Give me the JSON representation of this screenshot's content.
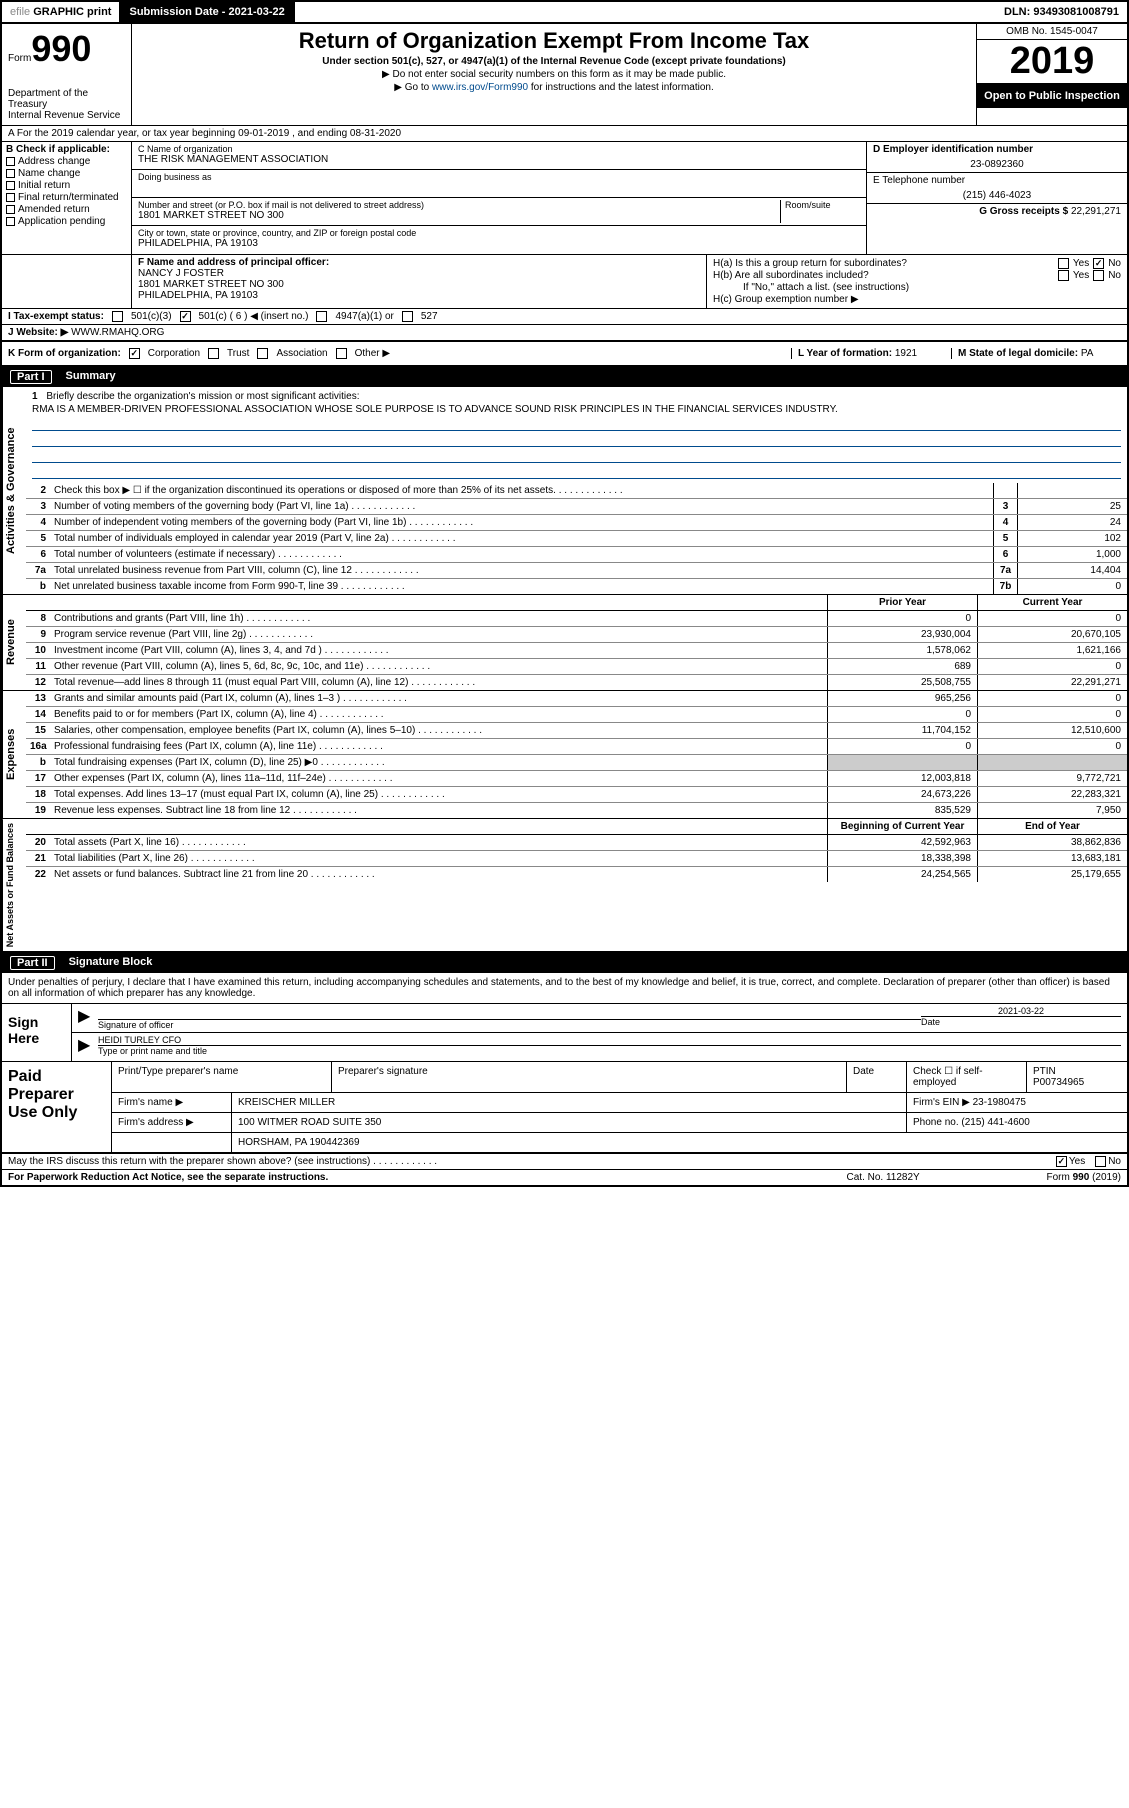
{
  "topbar": {
    "efile_prefix": "efile",
    "efile_suffix": "GRAPHIC print",
    "submission_label": "Submission Date - 2021-03-22",
    "dln": "DLN: 93493081008791"
  },
  "header": {
    "form_label": "Form",
    "form_number": "990",
    "dept": "Department of the Treasury\nInternal Revenue Service",
    "title": "Return of Organization Exempt From Income Tax",
    "subtitle": "Under section 501(c), 527, or 4947(a)(1) of the Internal Revenue Code (except private foundations)",
    "instr1": "▶ Do not enter social security numbers on this form as it may be made public.",
    "instr2_pre": "▶ Go to ",
    "instr2_link": "www.irs.gov/Form990",
    "instr2_post": " for instructions and the latest information.",
    "omb": "OMB No. 1545-0047",
    "year": "2019",
    "open_public": "Open to Public Inspection"
  },
  "row_a": "A For the 2019 calendar year, or tax year beginning 09-01-2019   , and ending 08-31-2020",
  "col_b": {
    "label": "B Check if applicable:",
    "items": [
      "Address change",
      "Name change",
      "Initial return",
      "Final return/terminated",
      "Amended return",
      "Application pending"
    ]
  },
  "col_c": {
    "name_label": "C Name of organization",
    "name": "THE RISK MANAGEMENT ASSOCIATION",
    "dba_label": "Doing business as",
    "dba": "",
    "street_label": "Number and street (or P.O. box if mail is not delivered to street address)",
    "room_label": "Room/suite",
    "street": "1801 MARKET STREET NO 300",
    "city_label": "City or town, state or province, country, and ZIP or foreign postal code",
    "city": "PHILADELPHIA, PA  19103"
  },
  "col_d": {
    "label": "D Employer identification number",
    "val": "23-0892360"
  },
  "col_e": {
    "label": "E Telephone number",
    "val": "(215) 446-4023"
  },
  "col_g": {
    "label": "G Gross receipts $",
    "val": "22,291,271"
  },
  "col_f": {
    "label": "F  Name and address of principal officer:",
    "name": "NANCY J FOSTER",
    "addr1": "1801 MARKET STREET NO 300",
    "addr2": "PHILADELPHIA, PA  19103"
  },
  "col_h": {
    "ha": "H(a)  Is this a group return for subordinates?",
    "hb": "H(b)  Are all subordinates included?",
    "hb_note": "If \"No,\" attach a list. (see instructions)",
    "hc": "H(c)  Group exemption number ▶"
  },
  "row_i": {
    "label": "I   Tax-exempt status:",
    "opts": [
      "501(c)(3)",
      "501(c) ( 6 ) ◀ (insert no.)",
      "4947(a)(1) or",
      "527"
    ]
  },
  "row_j": {
    "label": "J   Website: ▶",
    "val": "WWW.RMAHQ.ORG"
  },
  "row_k": {
    "label": "K Form of organization:",
    "opts": [
      "Corporation",
      "Trust",
      "Association",
      "Other ▶"
    ]
  },
  "row_l": {
    "label": "L Year of formation:",
    "val": "1921"
  },
  "row_m": {
    "label": "M State of legal domicile:",
    "val": "PA"
  },
  "part1": {
    "num": "Part I",
    "title": "Summary"
  },
  "mission": {
    "num": "1",
    "label": "Briefly describe the organization's mission or most significant activities:",
    "text": "RMA IS A MEMBER-DRIVEN PROFESSIONAL ASSOCIATION WHOSE SOLE PURPOSE IS TO ADVANCE SOUND RISK PRINCIPLES IN THE FINANCIAL SERVICES INDUSTRY."
  },
  "lines_ag": [
    {
      "n": "2",
      "t": "Check this box ▶ ☐  if the organization discontinued its operations or disposed of more than 25% of its net assets.",
      "box": "",
      "v": ""
    },
    {
      "n": "3",
      "t": "Number of voting members of the governing body (Part VI, line 1a)",
      "box": "3",
      "v": "25"
    },
    {
      "n": "4",
      "t": "Number of independent voting members of the governing body (Part VI, line 1b)",
      "box": "4",
      "v": "24"
    },
    {
      "n": "5",
      "t": "Total number of individuals employed in calendar year 2019 (Part V, line 2a)",
      "box": "5",
      "v": "102"
    },
    {
      "n": "6",
      "t": "Total number of volunteers (estimate if necessary)",
      "box": "6",
      "v": "1,000"
    },
    {
      "n": "7a",
      "t": "Total unrelated business revenue from Part VIII, column (C), line 12",
      "box": "7a",
      "v": "14,404"
    },
    {
      "n": "b",
      "t": "Net unrelated business taxable income from Form 990-T, line 39",
      "box": "7b",
      "v": "0"
    }
  ],
  "pc_hdr": {
    "prior": "Prior Year",
    "cur": "Current Year"
  },
  "revenue": [
    {
      "n": "8",
      "t": "Contributions and grants (Part VIII, line 1h)",
      "p": "0",
      "c": "0"
    },
    {
      "n": "9",
      "t": "Program service revenue (Part VIII, line 2g)",
      "p": "23,930,004",
      "c": "20,670,105"
    },
    {
      "n": "10",
      "t": "Investment income (Part VIII, column (A), lines 3, 4, and 7d )",
      "p": "1,578,062",
      "c": "1,621,166"
    },
    {
      "n": "11",
      "t": "Other revenue (Part VIII, column (A), lines 5, 6d, 8c, 9c, 10c, and 11e)",
      "p": "689",
      "c": "0"
    },
    {
      "n": "12",
      "t": "Total revenue—add lines 8 through 11 (must equal Part VIII, column (A), line 12)",
      "p": "25,508,755",
      "c": "22,291,271"
    }
  ],
  "expenses": [
    {
      "n": "13",
      "t": "Grants and similar amounts paid (Part IX, column (A), lines 1–3 )",
      "p": "965,256",
      "c": "0"
    },
    {
      "n": "14",
      "t": "Benefits paid to or for members (Part IX, column (A), line 4)",
      "p": "0",
      "c": "0"
    },
    {
      "n": "15",
      "t": "Salaries, other compensation, employee benefits (Part IX, column (A), lines 5–10)",
      "p": "11,704,152",
      "c": "12,510,600"
    },
    {
      "n": "16a",
      "t": "Professional fundraising fees (Part IX, column (A), line 11e)",
      "p": "0",
      "c": "0"
    },
    {
      "n": "b",
      "t": "Total fundraising expenses (Part IX, column (D), line 25) ▶0",
      "p": "",
      "c": "",
      "grey": true
    },
    {
      "n": "17",
      "t": "Other expenses (Part IX, column (A), lines 11a–11d, 11f–24e)",
      "p": "12,003,818",
      "c": "9,772,721"
    },
    {
      "n": "18",
      "t": "Total expenses. Add lines 13–17 (must equal Part IX, column (A), line 25)",
      "p": "24,673,226",
      "c": "22,283,321"
    },
    {
      "n": "19",
      "t": "Revenue less expenses. Subtract line 18 from line 12",
      "p": "835,529",
      "c": "7,950"
    }
  ],
  "na_hdr": {
    "begin": "Beginning of Current Year",
    "end": "End of Year"
  },
  "netassets": [
    {
      "n": "20",
      "t": "Total assets (Part X, line 16)",
      "p": "42,592,963",
      "c": "38,862,836"
    },
    {
      "n": "21",
      "t": "Total liabilities (Part X, line 26)",
      "p": "18,338,398",
      "c": "13,683,181"
    },
    {
      "n": "22",
      "t": "Net assets or fund balances. Subtract line 21 from line 20",
      "p": "24,254,565",
      "c": "25,179,655"
    }
  ],
  "part2": {
    "num": "Part II",
    "title": "Signature Block"
  },
  "sig_decl": "Under penalties of perjury, I declare that I have examined this return, including accompanying schedules and statements, and to the best of my knowledge and belief, it is true, correct, and complete. Declaration of preparer (other than officer) is based on all information of which preparer has any knowledge.",
  "sign": {
    "here": "Sign Here",
    "sig_label": "Signature of officer",
    "date_label": "Date",
    "date": "2021-03-22",
    "name_label": "Type or print name and title",
    "name": "HEIDI TURLEY CFO"
  },
  "prep": {
    "label": "Paid Preparer Use Only",
    "r1": {
      "a": "Print/Type preparer's name",
      "b": "Preparer's signature",
      "c": "Date",
      "d_pre": "Check ☐ if self-employed",
      "e_label": "PTIN",
      "e": "P00734965"
    },
    "r2": {
      "a": "Firm's name    ▶",
      "b": "KREISCHER MILLER",
      "c": "Firm's EIN ▶",
      "d": "23-1980475"
    },
    "r3": {
      "a": "Firm's address ▶",
      "b": "100 WITMER ROAD SUITE 350",
      "c": "Phone no.",
      "d": "(215) 441-4600"
    },
    "r4": {
      "b": "HORSHAM, PA  190442369"
    }
  },
  "discuss": "May the IRS discuss this return with the preparer shown above? (see instructions)",
  "footer": {
    "left": "For Paperwork Reduction Act Notice, see the separate instructions.",
    "mid": "Cat. No. 11282Y",
    "right": "Form 990 (2019)"
  },
  "yes": "Yes",
  "no": "No",
  "side": {
    "ag": "Activities & Governance",
    "rev": "Revenue",
    "exp": "Expenses",
    "na": "Net Assets or Fund Balances"
  }
}
